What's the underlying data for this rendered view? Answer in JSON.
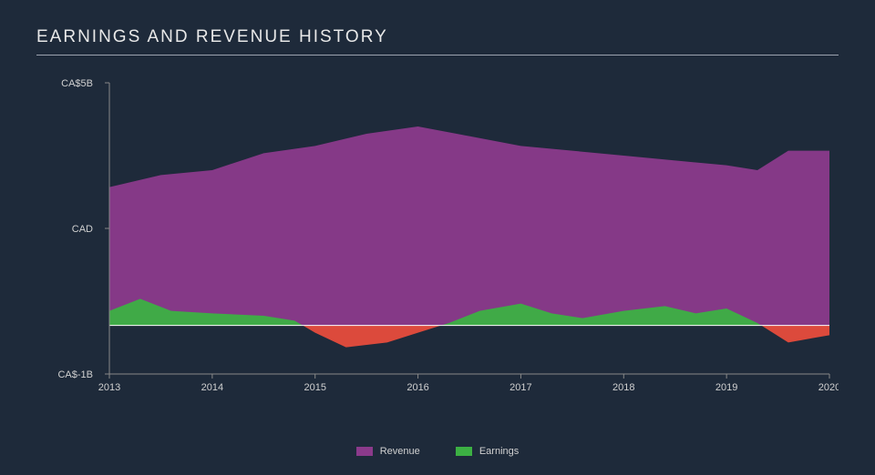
{
  "title": "EARNINGS AND REVENUE HISTORY",
  "chart": {
    "type": "area",
    "background_color": "#1e2a3a",
    "axis_color": "#888888",
    "zero_line_color": "#ffffff",
    "font_color": "#d0d0d0",
    "x_categories": [
      "2013",
      "2014",
      "2015",
      "2016",
      "2017",
      "2018",
      "2019",
      "2020"
    ],
    "y_labels": [
      {
        "v": 5,
        "text": "CA$5B"
      },
      {
        "v": 2,
        "text": "CAD"
      },
      {
        "v": -1,
        "text": "CA$-1B"
      }
    ],
    "y_min": -1,
    "y_max": 5,
    "series": [
      {
        "name": "Revenue",
        "color": "#8b3a8b",
        "legend_label": "Revenue",
        "points": [
          {
            "x": 2013.0,
            "y": 2.85
          },
          {
            "x": 2013.5,
            "y": 3.1
          },
          {
            "x": 2014.0,
            "y": 3.2
          },
          {
            "x": 2014.5,
            "y": 3.55
          },
          {
            "x": 2015.0,
            "y": 3.7
          },
          {
            "x": 2015.5,
            "y": 3.95
          },
          {
            "x": 2016.0,
            "y": 4.1
          },
          {
            "x": 2016.5,
            "y": 3.9
          },
          {
            "x": 2017.0,
            "y": 3.7
          },
          {
            "x": 2017.5,
            "y": 3.6
          },
          {
            "x": 2018.0,
            "y": 3.5
          },
          {
            "x": 2018.5,
            "y": 3.4
          },
          {
            "x": 2019.0,
            "y": 3.3
          },
          {
            "x": 2019.3,
            "y": 3.2
          },
          {
            "x": 2019.6,
            "y": 3.6
          },
          {
            "x": 2020.0,
            "y": 3.6
          }
        ]
      },
      {
        "name": "Earnings",
        "color_positive": "#3cb043",
        "color_negative": "#e74c3c",
        "legend_label": "Earnings",
        "points": [
          {
            "x": 2013.0,
            "y": 0.3
          },
          {
            "x": 2013.3,
            "y": 0.55
          },
          {
            "x": 2013.6,
            "y": 0.3
          },
          {
            "x": 2014.0,
            "y": 0.25
          },
          {
            "x": 2014.5,
            "y": 0.2
          },
          {
            "x": 2014.8,
            "y": 0.1
          },
          {
            "x": 2015.0,
            "y": -0.15
          },
          {
            "x": 2015.3,
            "y": -0.45
          },
          {
            "x": 2015.7,
            "y": -0.35
          },
          {
            "x": 2016.0,
            "y": -0.15
          },
          {
            "x": 2016.3,
            "y": 0.05
          },
          {
            "x": 2016.6,
            "y": 0.3
          },
          {
            "x": 2017.0,
            "y": 0.45
          },
          {
            "x": 2017.3,
            "y": 0.25
          },
          {
            "x": 2017.6,
            "y": 0.15
          },
          {
            "x": 2018.0,
            "y": 0.3
          },
          {
            "x": 2018.4,
            "y": 0.4
          },
          {
            "x": 2018.7,
            "y": 0.25
          },
          {
            "x": 2019.0,
            "y": 0.35
          },
          {
            "x": 2019.3,
            "y": 0.05
          },
          {
            "x": 2019.6,
            "y": -0.35
          },
          {
            "x": 2020.0,
            "y": -0.2
          }
        ]
      }
    ],
    "legend": [
      {
        "label": "Revenue",
        "color": "#8b3a8b"
      },
      {
        "label": "Earnings",
        "color": "#3cb043"
      }
    ]
  }
}
